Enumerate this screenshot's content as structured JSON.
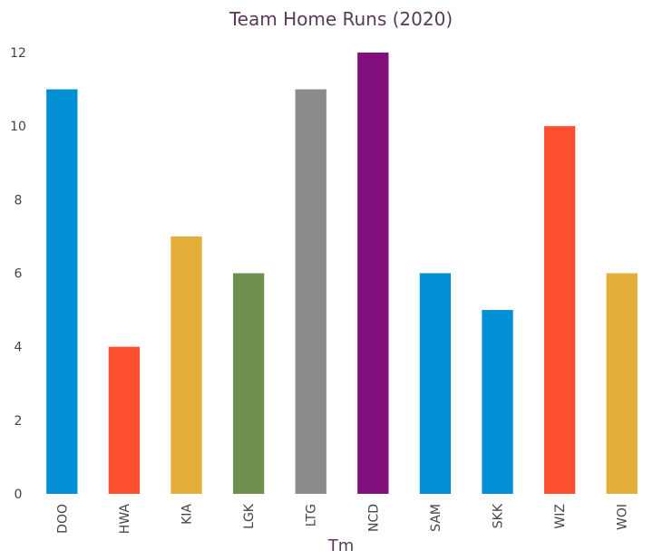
{
  "chart_data": {
    "type": "bar",
    "title": "Team Home Runs (2020)",
    "xlabel": "Tm",
    "ylabel": "",
    "categories": [
      "DOO",
      "HWA",
      "KIA",
      "LGK",
      "LTG",
      "NCD",
      "SAM",
      "SKK",
      "WIZ",
      "WOI"
    ],
    "values": [
      11,
      4,
      7,
      6,
      11,
      12,
      6,
      5,
      10,
      6
    ],
    "colors": [
      "#008fd5",
      "#fc4f30",
      "#e5ae38",
      "#6d904f",
      "#8b8b8b",
      "#810f7c",
      "#008fd5",
      "#008fd5",
      "#fc4f30",
      "#e5ae38"
    ],
    "ylim": [
      0,
      12
    ],
    "yticks": [
      0,
      2,
      4,
      6,
      8,
      10,
      12
    ],
    "grid": false,
    "legend": "none"
  }
}
